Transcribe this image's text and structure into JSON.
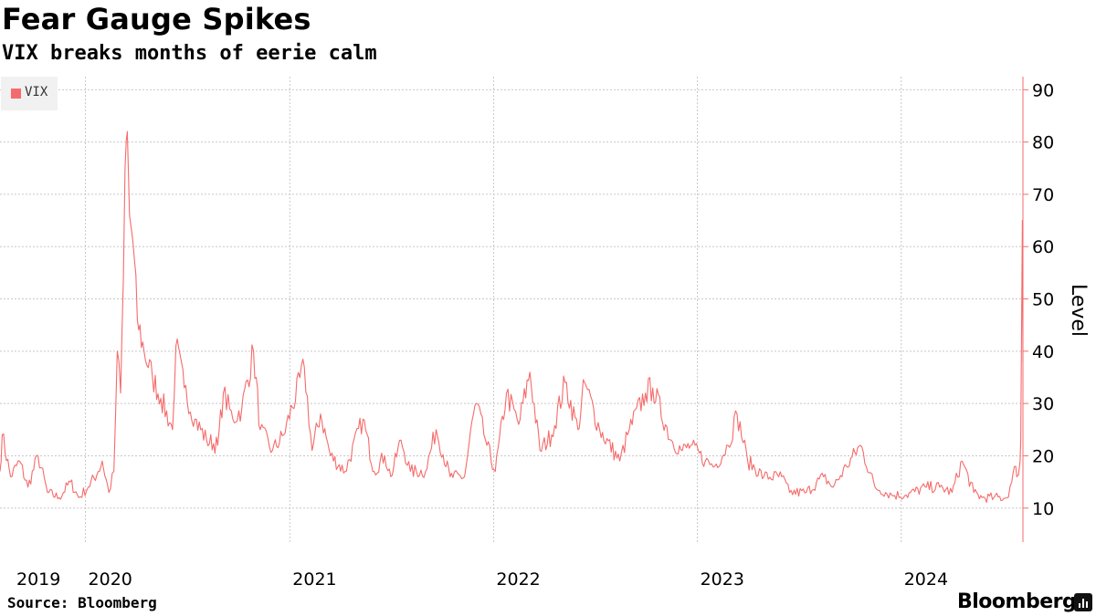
{
  "header": {
    "title": "Fear Gauge Spikes",
    "subtitle": "VIX breaks months of eerie calm"
  },
  "footer": {
    "source": "Source: Bloomberg",
    "brand": "Bloomberg"
  },
  "colors": {
    "series": "#f56b6b",
    "grid": "#c8c8c8",
    "axis": "#f56b6b"
  },
  "chart_data": {
    "type": "line",
    "title": "Fear Gauge Spikes",
    "subtitle": "VIX breaks months of eerie calm",
    "ylabel": "Level",
    "xlabel": "",
    "legend": {
      "placement": "top-left",
      "entries": [
        "VIX"
      ]
    },
    "grid": true,
    "y_axis_side": "right",
    "ylim": [
      3.5,
      92.5
    ],
    "y_ticks": [
      10,
      20,
      30,
      40,
      50,
      60,
      70,
      80,
      90
    ],
    "y_tick_labels": [
      "10",
      "20",
      "30",
      "40",
      "50",
      "60",
      "70",
      "80",
      "90"
    ],
    "xlim": [
      "2019-08-01",
      "2024-08-06"
    ],
    "x_ticks": [
      "2019-08-01",
      "2020-01-01",
      "2021-01-01",
      "2022-01-01",
      "2023-01-01",
      "2024-01-01"
    ],
    "x_tick_labels": [
      "2019",
      "2020",
      "2021",
      "2022",
      "2023",
      "2024"
    ],
    "series": [
      {
        "name": "VIX",
        "points": [
          [
            "2019-08-01",
            17
          ],
          [
            "2019-08-05",
            24
          ],
          [
            "2019-08-20",
            16
          ],
          [
            "2019-09-05",
            19
          ],
          [
            "2019-09-20",
            14
          ],
          [
            "2019-10-08",
            20
          ],
          [
            "2019-10-25",
            13
          ],
          [
            "2019-11-15",
            12
          ],
          [
            "2019-12-05",
            15
          ],
          [
            "2019-12-20",
            12
          ],
          [
            "2020-01-06",
            14
          ],
          [
            "2020-01-24",
            17
          ],
          [
            "2020-01-31",
            19
          ],
          [
            "2020-02-12",
            13
          ],
          [
            "2020-02-21",
            17
          ],
          [
            "2020-02-27",
            40
          ],
          [
            "2020-03-04",
            32
          ],
          [
            "2020-03-09",
            54
          ],
          [
            "2020-03-12",
            75
          ],
          [
            "2020-03-16",
            82
          ],
          [
            "2020-03-20",
            66
          ],
          [
            "2020-03-26",
            61
          ],
          [
            "2020-04-03",
            46
          ],
          [
            "2020-04-15",
            40
          ],
          [
            "2020-04-30",
            35
          ],
          [
            "2020-05-15",
            31
          ],
          [
            "2020-06-05",
            25
          ],
          [
            "2020-06-11",
            41
          ],
          [
            "2020-06-26",
            33
          ],
          [
            "2020-07-15",
            27
          ],
          [
            "2020-08-05",
            23
          ],
          [
            "2020-08-25",
            22
          ],
          [
            "2020-09-04",
            32
          ],
          [
            "2020-09-21",
            27
          ],
          [
            "2020-10-07",
            29
          ],
          [
            "2020-10-28",
            40
          ],
          [
            "2020-11-09",
            25
          ],
          [
            "2020-12-01",
            21
          ],
          [
            "2020-12-21",
            24
          ],
          [
            "2021-01-27",
            37
          ],
          [
            "2021-02-10",
            21
          ],
          [
            "2021-02-25",
            28
          ],
          [
            "2021-03-15",
            20
          ],
          [
            "2021-04-10",
            17
          ],
          [
            "2021-05-12",
            27
          ],
          [
            "2021-06-01",
            17
          ],
          [
            "2021-06-20",
            20
          ],
          [
            "2021-07-01",
            16
          ],
          [
            "2021-07-19",
            23
          ],
          [
            "2021-08-05",
            17
          ],
          [
            "2021-09-01",
            17
          ],
          [
            "2021-09-20",
            25
          ],
          [
            "2021-10-15",
            16
          ],
          [
            "2021-11-10",
            16
          ],
          [
            "2021-11-26",
            28
          ],
          [
            "2021-12-01",
            30
          ],
          [
            "2021-12-20",
            22
          ],
          [
            "2022-01-04",
            17
          ],
          [
            "2022-01-24",
            32
          ],
          [
            "2022-02-15",
            26
          ],
          [
            "2022-03-07",
            36
          ],
          [
            "2022-03-25",
            21
          ],
          [
            "2022-04-15",
            24
          ],
          [
            "2022-05-09",
            34
          ],
          [
            "2022-06-01",
            25
          ],
          [
            "2022-06-13",
            34
          ],
          [
            "2022-07-10",
            25
          ],
          [
            "2022-08-15",
            19
          ],
          [
            "2022-09-01",
            25
          ],
          [
            "2022-09-30",
            32
          ],
          [
            "2022-10-13",
            33
          ],
          [
            "2022-11-15",
            23
          ],
          [
            "2022-12-05",
            21
          ],
          [
            "2022-12-20",
            22
          ],
          [
            "2023-01-15",
            19
          ],
          [
            "2023-02-01",
            18
          ],
          [
            "2023-02-25",
            22
          ],
          [
            "2023-03-13",
            28
          ],
          [
            "2023-04-01",
            19
          ],
          [
            "2023-04-30",
            16
          ],
          [
            "2023-06-01",
            16
          ],
          [
            "2023-06-15",
            13
          ],
          [
            "2023-07-15",
            13
          ],
          [
            "2023-08-15",
            16
          ],
          [
            "2023-09-01",
            14
          ],
          [
            "2023-09-25",
            18
          ],
          [
            "2023-10-20",
            22
          ],
          [
            "2023-11-15",
            14
          ],
          [
            "2023-12-15",
            12.5
          ],
          [
            "2024-01-10",
            12.5
          ],
          [
            "2024-02-15",
            14
          ],
          [
            "2024-03-10",
            14
          ],
          [
            "2024-04-01",
            13
          ],
          [
            "2024-04-19",
            19
          ],
          [
            "2024-05-10",
            13
          ],
          [
            "2024-05-25",
            12
          ],
          [
            "2024-06-15",
            12
          ],
          [
            "2024-07-08",
            12
          ],
          [
            "2024-07-17",
            15
          ],
          [
            "2024-07-24",
            18
          ],
          [
            "2024-07-26",
            16
          ],
          [
            "2024-08-01",
            19
          ],
          [
            "2024-08-02",
            23
          ],
          [
            "2024-08-05",
            65
          ],
          [
            "2024-08-06",
            38
          ]
        ]
      }
    ]
  }
}
